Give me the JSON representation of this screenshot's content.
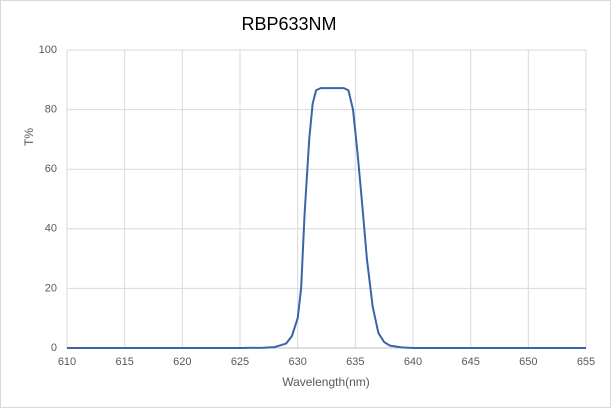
{
  "chart_data": {
    "type": "line",
    "title": "RBP633NM",
    "x_label": "Wavelength(nm)",
    "y_label": "T%",
    "x": [
      610,
      625,
      627,
      628,
      629,
      629.5,
      630,
      630.3,
      630.6,
      631,
      631.3,
      631.6,
      632,
      633,
      634,
      634.4,
      634.8,
      635.2,
      635.6,
      636,
      636.5,
      637,
      637.5,
      638,
      639,
      640,
      655
    ],
    "series": [
      {
        "name": "T%",
        "color": "#3a64a8",
        "values": [
          0,
          0,
          0.1,
          0.3,
          1.5,
          4,
          10,
          20,
          45,
          70,
          82,
          86.5,
          87.2,
          87.2,
          87.2,
          86.5,
          80,
          65,
          48,
          30,
          14,
          5,
          2,
          0.8,
          0.2,
          0,
          0
        ]
      }
    ],
    "xlim": [
      610,
      655
    ],
    "xticks": [
      610,
      615,
      620,
      625,
      630,
      635,
      640,
      645,
      650,
      655
    ],
    "ylim": [
      0,
      100
    ],
    "yticks": [
      0,
      20,
      40,
      60,
      80,
      100
    ],
    "grid": true
  }
}
